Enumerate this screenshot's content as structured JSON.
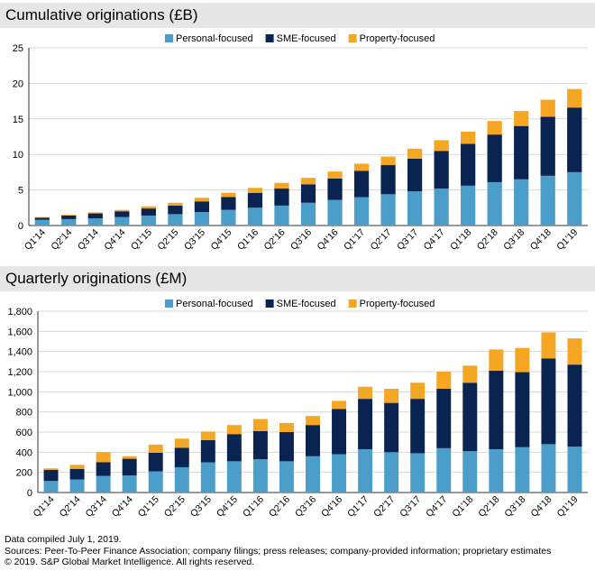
{
  "colors": {
    "personal": "#4b9ec9",
    "sme": "#0a2451",
    "property": "#f5a623",
    "grid": "#d9d9d9",
    "axis": "#333333"
  },
  "legend": [
    "Personal-focused",
    "SME-focused",
    "Property-focused"
  ],
  "chart_data": [
    {
      "type": "bar",
      "stacked": true,
      "title": "Cumulative originations (£B)",
      "categories": [
        "Q1'14",
        "Q2'14",
        "Q3'14",
        "Q4'14",
        "Q1'15",
        "Q2'15",
        "Q3'15",
        "Q4'15",
        "Q1'16",
        "Q2'16",
        "Q3'16",
        "Q4'16",
        "Q1'17",
        "Q2'17",
        "Q3'17",
        "Q4'17",
        "Q1'18",
        "Q2'18",
        "Q3'18",
        "Q4'18",
        "Q1'19"
      ],
      "series": [
        {
          "name": "Personal-focused",
          "values": [
            0.8,
            0.9,
            1.0,
            1.2,
            1.4,
            1.6,
            1.9,
            2.2,
            2.5,
            2.8,
            3.2,
            3.6,
            4.0,
            4.4,
            4.8,
            5.2,
            5.6,
            6.1,
            6.5,
            7.0,
            7.5
          ]
        },
        {
          "name": "SME-focused",
          "values": [
            0.3,
            0.5,
            0.7,
            0.8,
            1.0,
            1.2,
            1.5,
            1.8,
            2.1,
            2.4,
            2.6,
            3.0,
            3.7,
            4.1,
            4.6,
            5.3,
            5.9,
            6.7,
            7.5,
            8.3,
            9.1
          ]
        },
        {
          "name": "Property-focused",
          "values": [
            0.1,
            0.1,
            0.15,
            0.2,
            0.3,
            0.4,
            0.5,
            0.6,
            0.7,
            0.8,
            0.9,
            1.0,
            1.0,
            1.2,
            1.4,
            1.5,
            1.7,
            1.9,
            2.1,
            2.4,
            2.6
          ]
        }
      ],
      "ylim": [
        0,
        25
      ],
      "yticks": [
        "0",
        "5",
        "10",
        "15",
        "20",
        "25"
      ],
      "yticks_values": [
        0,
        5,
        10,
        15,
        20,
        25
      ],
      "grid": true,
      "legend_position": "top"
    },
    {
      "type": "bar",
      "stacked": true,
      "title": "Quarterly originations (£M)",
      "categories": [
        "Q1'14",
        "Q2'14",
        "Q3'14",
        "Q4'14",
        "Q1'15",
        "Q2'15",
        "Q3'15",
        "Q4'15",
        "Q1'16",
        "Q2'16",
        "Q3'16",
        "Q4'16",
        "Q1'17",
        "Q2'17",
        "Q3'17",
        "Q4'17",
        "Q1'18",
        "Q2'18",
        "Q3'18",
        "Q4'18",
        "Q1'19"
      ],
      "series": [
        {
          "name": "Personal-focused",
          "values": [
            115,
            130,
            165,
            170,
            210,
            250,
            300,
            310,
            330,
            310,
            360,
            380,
            430,
            400,
            390,
            440,
            410,
            430,
            450,
            480,
            455
          ]
        },
        {
          "name": "SME-focused",
          "values": [
            110,
            105,
            135,
            165,
            185,
            195,
            220,
            270,
            280,
            290,
            310,
            450,
            500,
            490,
            540,
            590,
            680,
            780,
            745,
            850,
            815
          ]
        },
        {
          "name": "Property-focused",
          "values": [
            15,
            40,
            100,
            25,
            80,
            90,
            85,
            90,
            120,
            90,
            90,
            80,
            120,
            140,
            160,
            170,
            170,
            210,
            240,
            260,
            260
          ]
        }
      ],
      "ylim": [
        0,
        1800
      ],
      "yticks": [
        "0",
        "200",
        "400",
        "600",
        "800",
        "1,000",
        "1,200",
        "1,400",
        "1,600",
        "1,800"
      ],
      "yticks_values": [
        0,
        200,
        400,
        600,
        800,
        1000,
        1200,
        1400,
        1600,
        1800
      ],
      "grid": true,
      "legend_position": "top"
    }
  ],
  "footer": {
    "line1": "Data compiled July 1, 2019.",
    "line2": "Sources: Peer-To-Peer Finance Association; company filings; press releases; company-provided information; proprietary estimates",
    "line3": "© 2019. S&P Global Market Intelligence. All rights reserved."
  }
}
